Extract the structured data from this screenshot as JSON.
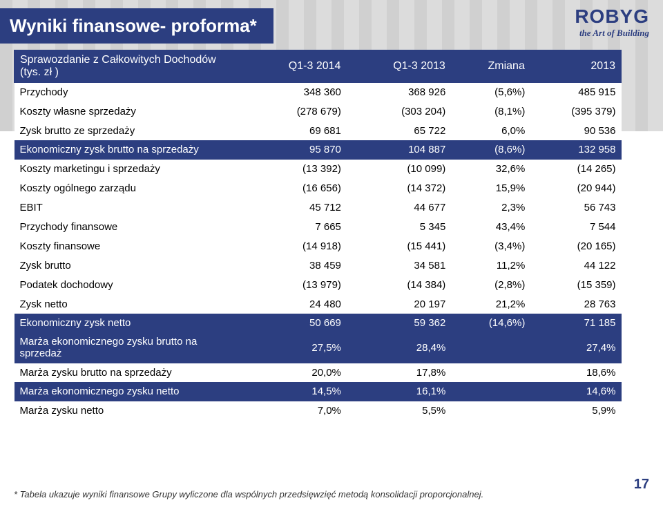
{
  "logo": {
    "main": "ROBYG",
    "sub": "the Art of Building"
  },
  "title": "Wyniki finansowe- proforma*",
  "page_number": "17",
  "footnote": "* Tabela ukazuje wyniki finansowe Grupy wyliczone dla wspólnych przedsięwzięć metodą konsolidacji proporcjonalnej.",
  "colors": {
    "brand_navy": "#2c3e80",
    "white": "#ffffff",
    "text": "#000000"
  },
  "table": {
    "header": {
      "label": "Sprawozdanie z Całkowitych Dochodów (tys. zł )",
      "cols": [
        "Q1-3 2014",
        "Q1-3 2013",
        "Zmiana",
        "2013"
      ]
    },
    "rows": [
      {
        "hl": false,
        "label": "Przychody",
        "c": [
          "348 360",
          "368 926",
          "(5,6%)",
          "485 915"
        ]
      },
      {
        "hl": false,
        "label": "Koszty własne sprzedaży",
        "c": [
          "(278 679)",
          "(303 204)",
          "(8,1%)",
          "(395 379)"
        ]
      },
      {
        "hl": false,
        "label": "Zysk brutto ze sprzedaży",
        "c": [
          "69 681",
          "65 722",
          "6,0%",
          "90 536"
        ]
      },
      {
        "hl": true,
        "label": "Ekonomiczny zysk brutto na sprzedaży",
        "c": [
          "95 870",
          "104 887",
          "(8,6%)",
          "132 958"
        ]
      },
      {
        "hl": false,
        "label": "Koszty marketingu i sprzedaży",
        "c": [
          "(13 392)",
          "(10 099)",
          "32,6%",
          "(14 265)"
        ]
      },
      {
        "hl": false,
        "label": "Koszty ogólnego zarządu",
        "c": [
          "(16 656)",
          "(14 372)",
          "15,9%",
          "(20 944)"
        ]
      },
      {
        "hl": false,
        "label": "EBIT",
        "c": [
          "45 712",
          "44 677",
          "2,3%",
          "56 743"
        ]
      },
      {
        "hl": false,
        "label": "Przychody finansowe",
        "c": [
          "7 665",
          "5 345",
          "43,4%",
          "7 544"
        ]
      },
      {
        "hl": false,
        "label": "Koszty finansowe",
        "c": [
          "(14 918)",
          "(15 441)",
          "(3,4%)",
          "(20 165)"
        ]
      },
      {
        "hl": false,
        "label": "Zysk brutto",
        "c": [
          "38 459",
          "34 581",
          "11,2%",
          "44 122"
        ]
      },
      {
        "hl": false,
        "label": "Podatek dochodowy",
        "c": [
          "(13 979)",
          "(14 384)",
          "(2,8%)",
          "(15 359)"
        ]
      },
      {
        "hl": false,
        "label": "Zysk netto",
        "c": [
          "24 480",
          "20 197",
          "21,2%",
          "28 763"
        ]
      },
      {
        "hl": true,
        "label": "Ekonomiczny zysk netto",
        "c": [
          "50 669",
          "59 362",
          "(14,6%)",
          "71 185"
        ]
      },
      {
        "hl": true,
        "label": "Marża ekonomicznego zysku brutto na sprzedaż",
        "c": [
          "27,5%",
          "28,4%",
          "",
          "27,4%"
        ]
      },
      {
        "hl": false,
        "label": "Marża zysku brutto na sprzedaży",
        "c": [
          "20,0%",
          "17,8%",
          "",
          "18,6%"
        ]
      },
      {
        "hl": true,
        "label": "Marża ekonomicznego zysku netto",
        "c": [
          "14,5%",
          "16,1%",
          "",
          "14,6%"
        ]
      },
      {
        "hl": false,
        "label": "Marża zysku netto",
        "c": [
          "7,0%",
          "5,5%",
          "",
          "5,9%"
        ]
      }
    ]
  }
}
